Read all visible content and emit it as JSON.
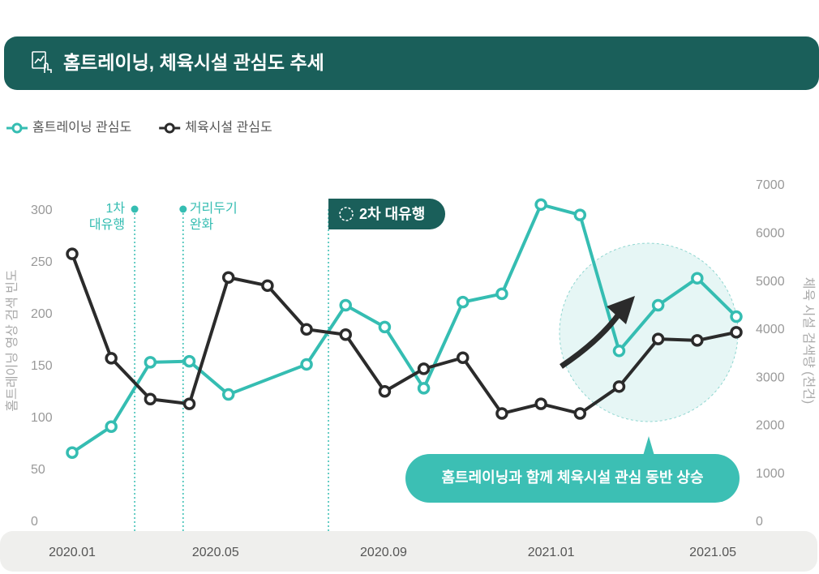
{
  "chart_data": {
    "type": "line",
    "title": "홈트레이닝, 체육시설 관심도 추세",
    "ylabel": "홈트레이닝 영상 검색 빈도",
    "y2label": "체육 시설 검색량 (천건)",
    "xlim": [
      0,
      17
    ],
    "xticks": [
      {
        "value": 0,
        "label": "2020.01"
      },
      {
        "value": 3.67,
        "label": "2020.05"
      },
      {
        "value": 7.97,
        "label": "2020.09"
      },
      {
        "value": 12.26,
        "label": "2021.01"
      },
      {
        "value": 16.4,
        "label": "2021.05"
      }
    ],
    "ylim": [
      0,
      300
    ],
    "yticks": [
      0,
      50,
      100,
      150,
      200,
      250,
      300
    ],
    "y2lim": [
      0,
      7000
    ],
    "y2ticks": [
      0,
      1000,
      2000,
      3000,
      4000,
      5000,
      6000,
      7000
    ],
    "series": [
      {
        "name": "홈트레이닝 관심도",
        "color": "#35bdb2",
        "axis": "y",
        "x": [
          0,
          1,
          2,
          3,
          4,
          6,
          7,
          8,
          9,
          10,
          11,
          12,
          13,
          14,
          15,
          16,
          17
        ],
        "values": [
          67,
          92,
          154,
          155,
          123,
          152,
          209,
          188,
          129,
          212,
          220,
          306,
          296,
          165,
          209,
          235,
          198
        ]
      },
      {
        "name": "체육시설 관심도",
        "color": "#2b2b2b",
        "axis": "y2",
        "x": [
          0,
          1,
          2,
          3,
          4,
          5,
          6,
          7,
          8,
          9,
          10,
          11,
          12,
          13,
          14,
          15,
          16,
          17
        ],
        "values": [
          5580,
          3410,
          2560,
          2460,
          5090,
          4920,
          4010,
          3900,
          2720,
          3190,
          3420,
          2260,
          2460,
          2260,
          2820,
          3810,
          3780,
          3950
        ]
      }
    ],
    "annotations": [
      {
        "x": 1.6,
        "text": [
          "1차",
          "대유행"
        ]
      },
      {
        "x": 2.84,
        "text": [
          "거리두기",
          "완화"
        ]
      },
      {
        "x": 6.56,
        "text": [
          "2차 대유행"
        ]
      }
    ],
    "callout": "홈트레이닝과 함께 체육시설 관심 동반 상승"
  }
}
